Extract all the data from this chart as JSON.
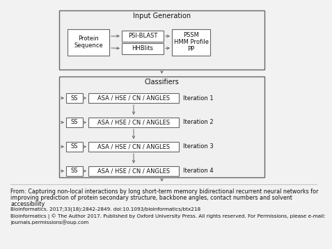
{
  "bg_color": "#f2f2f2",
  "box_face": "#f0f0f0",
  "box_face2": "#e8e8e8",
  "white": "#ffffff",
  "edge_color": "#666666",
  "text_color": "#111111",
  "input_gen_label": "Input Generation",
  "classifiers_label": "Classifiers",
  "protein_seq_label": "Protein\nSequence",
  "psi_blast_label": "PSI-BLAST",
  "hhblits_label": "HHBlits",
  "pssm_label": "PSSM\nHMM Profile\nPP",
  "ss_label": "SS",
  "asa_label": "ASA / HSE / CN / ANGLES",
  "iterations": [
    "Iteration 1",
    "Iteration 2",
    "Iteration 3",
    "Iteration 4"
  ],
  "caption_lines": [
    "From: Capturing non-local interactions by long short-term memory bidirectional recurrent neural networks for",
    "improving prediction of protein secondary structure, backbone angles, contact numbers and solvent",
    "accessibility",
    "Bioinformatics. 2017;33(18):2842-2849. doi:10.1093/bioinformatics/btx218",
    "Bioinformatics | © The Author 2017. Published by Oxford University Press. All rights reserved. For Permissions, please e-mail:",
    "journals.permissions@oup.com"
  ]
}
